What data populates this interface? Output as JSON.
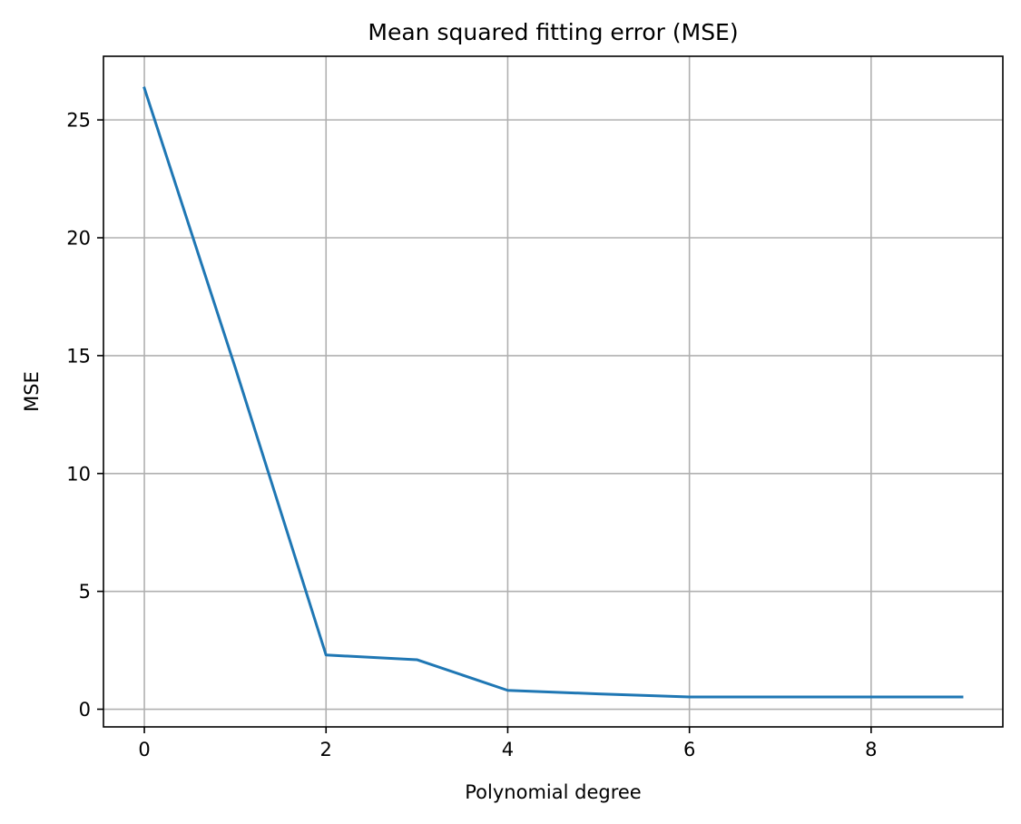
{
  "chart_data": {
    "type": "line",
    "title": "Mean squared fitting error (MSE)",
    "xlabel": "Polynomial degree",
    "ylabel": "MSE",
    "xlim": [
      -0.45,
      9.45
    ],
    "ylim": [
      -0.75,
      27.7
    ],
    "xticks": [
      0,
      2,
      4,
      6,
      8
    ],
    "xtick_labels": [
      "0",
      "2",
      "4",
      "6",
      "8"
    ],
    "yticks": [
      0,
      5,
      10,
      15,
      20,
      25
    ],
    "ytick_labels": [
      "0",
      "5",
      "10",
      "15",
      "20",
      "25"
    ],
    "grid": true,
    "series": [
      {
        "color": "#1f77b4",
        "x": [
          0,
          1,
          2,
          3,
          4,
          5,
          6,
          7,
          8,
          9
        ],
        "y": [
          26.35,
          14.5,
          2.3,
          2.1,
          0.8,
          0.65,
          0.52,
          0.52,
          0.52,
          0.52
        ]
      }
    ]
  }
}
